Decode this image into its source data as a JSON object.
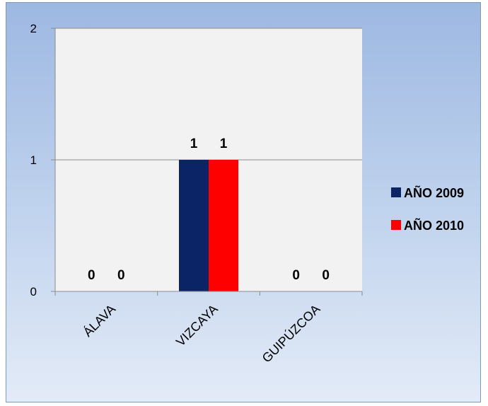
{
  "chart_data": {
    "type": "bar",
    "categories": [
      "ÁLAVA",
      "VIZCAYA",
      "GUIPÚZCOA"
    ],
    "series": [
      {
        "name": "AÑO 2009",
        "values": [
          0,
          1,
          0
        ],
        "color": "#0a2465"
      },
      {
        "name": "AÑO 2010",
        "values": [
          0,
          1,
          0
        ],
        "color": "#ff0000"
      }
    ],
    "yticks": [
      "0",
      "1",
      "2"
    ],
    "ylim": [
      0,
      2
    ],
    "grid": true,
    "legend": "right",
    "plot_background": "#f2f2f2"
  }
}
